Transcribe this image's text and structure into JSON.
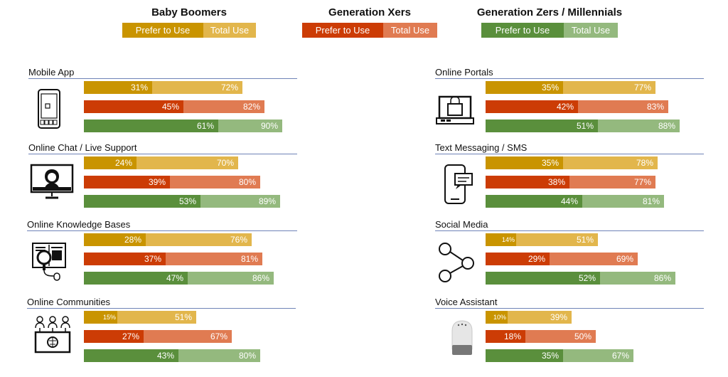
{
  "colors": {
    "boomers_prefer": "#c99400",
    "boomers_total": "#e2b64c",
    "xers_prefer": "#cc3c05",
    "xers_total": "#e07b52",
    "zers_prefer": "#5a8f3c",
    "zers_total": "#94b97e",
    "rule": "#6f83b7"
  },
  "legend": [
    {
      "title": "Baby Boomers",
      "prefer_label": "Prefer to Use",
      "total_label": "Total Use"
    },
    {
      "title": "Generation Xers",
      "prefer_label": "Prefer to Use",
      "total_label": "Total Use"
    },
    {
      "title": "Generation Zers / Millennials",
      "prefer_label": "Prefer to Use",
      "total_label": "Total Use"
    }
  ],
  "chart_data": {
    "type": "bar",
    "orientation": "horizontal",
    "stacked_overlay": true,
    "series": [
      {
        "name": "Baby Boomers"
      },
      {
        "name": "Generation Xers"
      },
      {
        "name": "Generation Zers / Millennials"
      }
    ],
    "measures": [
      "Prefer to Use",
      "Total Use"
    ],
    "xlim": [
      0,
      100
    ],
    "panels": [
      {
        "title": "Mobile App",
        "icon": "smartphone-icon",
        "prefer": [
          31,
          45,
          61
        ],
        "total": [
          72,
          82,
          90
        ],
        "prefer_labels": [
          "31%",
          "45%",
          "61%"
        ],
        "total_labels": [
          "72%",
          "82%",
          "90%"
        ]
      },
      {
        "title": "Online Chat / Live Support",
        "icon": "support-agent-monitor-icon",
        "prefer": [
          24,
          39,
          53
        ],
        "total": [
          70,
          80,
          89
        ],
        "prefer_labels": [
          "24%",
          "39%",
          "53%"
        ],
        "total_labels": [
          "70%",
          "80%",
          "89%"
        ]
      },
      {
        "title": "Online Knowledge Bases",
        "icon": "knowledge-base-search-icon",
        "prefer": [
          28,
          37,
          47
        ],
        "total": [
          76,
          81,
          86
        ],
        "prefer_labels": [
          "28%",
          "37%",
          "47%"
        ],
        "total_labels": [
          "76%",
          "81%",
          "86%"
        ]
      },
      {
        "title": "Online Communities",
        "icon": "online-community-icon",
        "prefer": [
          15,
          27,
          43
        ],
        "total": [
          51,
          67,
          80
        ],
        "prefer_labels": [
          "15%",
          "27%",
          "43%"
        ],
        "total_labels": [
          "51%",
          "67%",
          "80%"
        ]
      },
      {
        "title": "Online Portals",
        "icon": "online-portal-laptop-icon",
        "prefer": [
          35,
          42,
          51
        ],
        "total": [
          77,
          83,
          88
        ],
        "prefer_labels": [
          "35%",
          "42%",
          "51%"
        ],
        "total_labels": [
          "77%",
          "83%",
          "88%"
        ]
      },
      {
        "title": "Text Messaging / SMS",
        "icon": "text-message-phone-icon",
        "prefer": [
          35,
          38,
          44
        ],
        "total": [
          78,
          77,
          81
        ],
        "prefer_labels": [
          "35%",
          "38%",
          "44%"
        ],
        "total_labels": [
          "78%",
          "77%",
          "81%"
        ]
      },
      {
        "title": "Social Media",
        "icon": "share-network-icon",
        "prefer": [
          14,
          29,
          52
        ],
        "total": [
          51,
          69,
          86
        ],
        "prefer_labels": [
          "14%",
          "29%",
          "52%"
        ],
        "total_labels": [
          "51%",
          "69%",
          "86%"
        ]
      },
      {
        "title": "Voice Assistant",
        "icon": "smart-speaker-icon",
        "prefer": [
          10,
          18,
          35
        ],
        "total": [
          39,
          50,
          67
        ],
        "prefer_labels": [
          "10%",
          "18%",
          "35%"
        ],
        "total_labels": [
          "39%",
          "50%",
          "67%"
        ]
      }
    ]
  }
}
